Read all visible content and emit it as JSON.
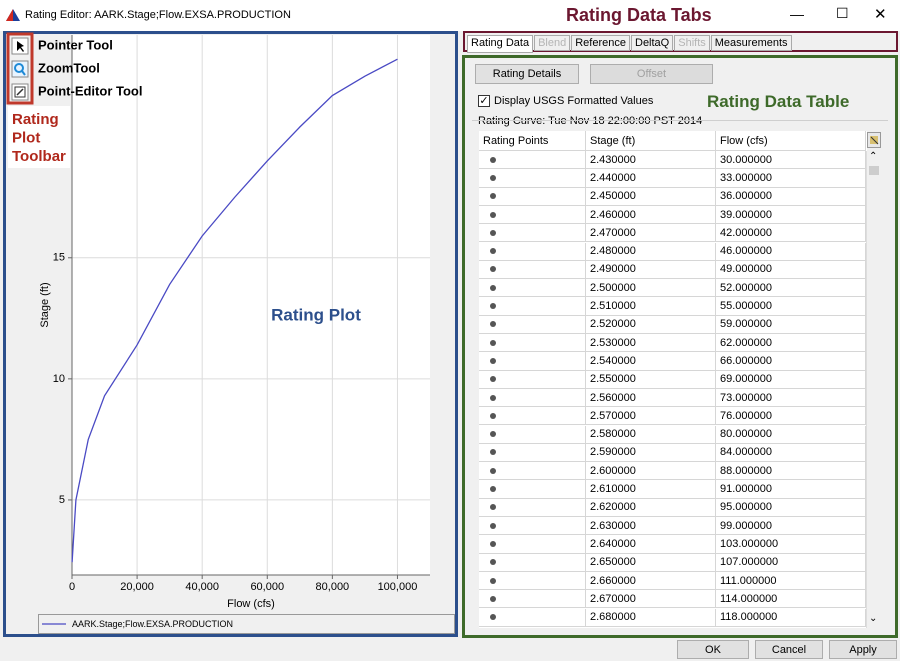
{
  "window": {
    "title": "Rating Editor: AARK.Stage;Flow.EXSA.PRODUCTION"
  },
  "annotations": {
    "tabs": "Rating Data Tabs",
    "toolbar": [
      "Rating",
      "Plot",
      "Toolbar"
    ],
    "plot": "Rating Plot",
    "table": "Rating Data Table"
  },
  "toolbar": {
    "tools": [
      "Pointer Tool",
      "ZoomTool",
      "Point-Editor Tool"
    ]
  },
  "chart_data": {
    "type": "line",
    "xlabel": "Flow (cfs)",
    "ylabel": "Stage (ft)",
    "x": [
      30,
      1200,
      5000,
      10000,
      20000,
      30000,
      40000,
      50000,
      60000,
      70000,
      80000,
      90000,
      100000
    ],
    "series": [
      {
        "name": "AARK.Stage;Flow.EXSA.PRODUCTION",
        "color": "#4a4ac4",
        "values": [
          2.43,
          5,
          7.5,
          9.3,
          11.4,
          13.9,
          15.9,
          17.5,
          19.0,
          20.4,
          21.7,
          22.5,
          23.2
        ]
      }
    ],
    "xlim": [
      0,
      110000
    ],
    "xticks": [
      0,
      {
        "value": 20000,
        "label": "20,000"
      },
      {
        "value": 40000,
        "label": "40,000"
      },
      {
        "value": 60000,
        "label": "60,000"
      },
      {
        "value": 80000,
        "label": "80,000"
      },
      {
        "value": 100000,
        "label": "100,000"
      }
    ],
    "ylim": [
      1.9,
      24.2
    ],
    "yticks": [
      5,
      10,
      15
    ],
    "grid": true
  },
  "tabs": {
    "items": [
      "Rating Data",
      "Blend",
      "Reference",
      "DeltaQ",
      "Shifts",
      "Measurements"
    ],
    "selected": 0,
    "disabled": [
      1,
      4
    ]
  },
  "rating_panel": {
    "buttons": [
      "Rating Details",
      "Offset"
    ],
    "disabled_buttons": [
      1
    ],
    "checkbox": {
      "label": "Display USGS Formatted Values",
      "checked": true
    },
    "curve": "Rating Curve: Tue Nov 18 22:00:00 PST 2014",
    "columns": [
      "Rating Points",
      "Stage (ft)",
      "Flow (cfs)"
    ],
    "rows": [
      [
        "2.430000",
        "30.000000"
      ],
      [
        "2.440000",
        "33.000000"
      ],
      [
        "2.450000",
        "36.000000"
      ],
      [
        "2.460000",
        "39.000000"
      ],
      [
        "2.470000",
        "42.000000"
      ],
      [
        "2.480000",
        "46.000000"
      ],
      [
        "2.490000",
        "49.000000"
      ],
      [
        "2.500000",
        "52.000000"
      ],
      [
        "2.510000",
        "55.000000"
      ],
      [
        "2.520000",
        "59.000000"
      ],
      [
        "2.530000",
        "62.000000"
      ],
      [
        "2.540000",
        "66.000000"
      ],
      [
        "2.550000",
        "69.000000"
      ],
      [
        "2.560000",
        "73.000000"
      ],
      [
        "2.570000",
        "76.000000"
      ],
      [
        "2.580000",
        "80.000000"
      ],
      [
        "2.590000",
        "84.000000"
      ],
      [
        "2.600000",
        "88.000000"
      ],
      [
        "2.610000",
        "91.000000"
      ],
      [
        "2.620000",
        "95.000000"
      ],
      [
        "2.630000",
        "99.000000"
      ],
      [
        "2.640000",
        "103.000000"
      ],
      [
        "2.650000",
        "107.000000"
      ],
      [
        "2.660000",
        "111.000000"
      ],
      [
        "2.670000",
        "114.000000"
      ],
      [
        "2.680000",
        "118.000000"
      ]
    ]
  },
  "dialog_buttons": [
    "OK",
    "Cancel",
    "Apply"
  ]
}
